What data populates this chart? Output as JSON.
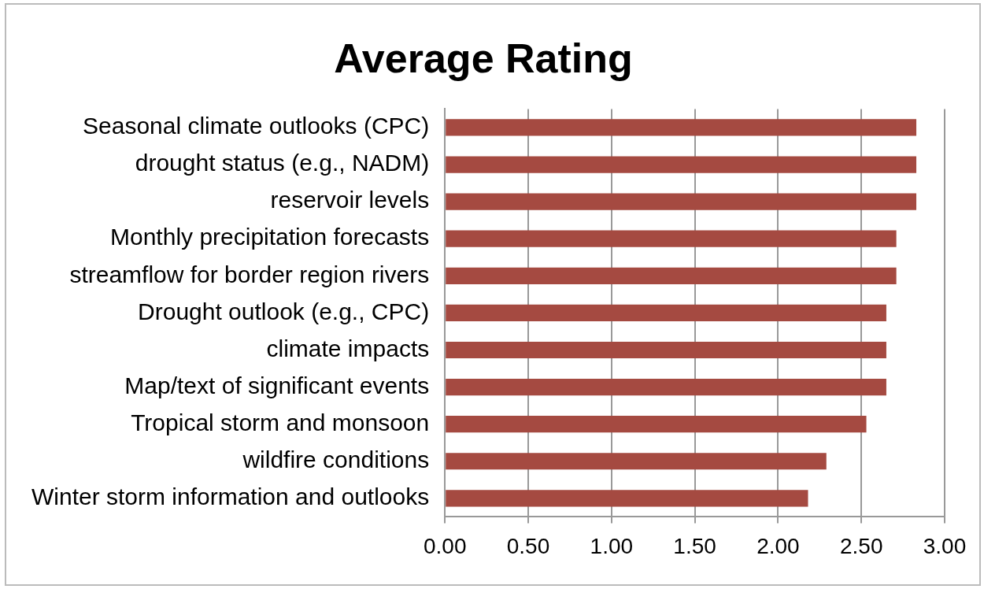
{
  "chart_data": {
    "type": "bar",
    "orientation": "horizontal",
    "title": "Average Rating",
    "categories": [
      "Seasonal climate outlooks (CPC)",
      "drought status (e.g., NADM)",
      "reservoir levels",
      "Monthly precipitation forecasts",
      "streamflow for border region rivers",
      "Drought outlook (e.g., CPC)",
      "climate impacts",
      "Map/text of significant events",
      "Tropical storm and monsoon",
      "wildfire conditions",
      "Winter storm information and outlooks"
    ],
    "values": [
      2.83,
      2.83,
      2.83,
      2.71,
      2.71,
      2.65,
      2.65,
      2.65,
      2.53,
      2.29,
      2.18
    ],
    "color": "#a54a41",
    "xlim": [
      0,
      3
    ],
    "xticks": [
      {
        "value": 0,
        "label": "0.00"
      },
      {
        "value": 0.5,
        "label": "0.50"
      },
      {
        "value": 1,
        "label": "1.00"
      },
      {
        "value": 1.5,
        "label": "1.50"
      },
      {
        "value": 2,
        "label": "2.00"
      },
      {
        "value": 2.5,
        "label": "2.50"
      },
      {
        "value": 3,
        "label": "3.00"
      }
    ],
    "grid": "x",
    "legend": false
  }
}
